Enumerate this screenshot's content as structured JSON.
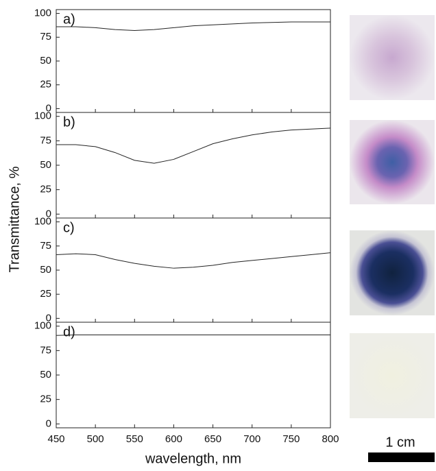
{
  "chart_data": [
    {
      "type": "line",
      "panel_label": "a)",
      "x": [
        450,
        475,
        500,
        525,
        550,
        575,
        600,
        625,
        650,
        675,
        700,
        725,
        750,
        775,
        800
      ],
      "values": [
        86,
        86,
        85,
        83,
        82,
        83,
        85,
        87,
        88,
        89,
        90,
        90.5,
        91,
        91,
        91
      ],
      "color": "#222222",
      "ylim": [
        -4,
        104
      ],
      "yticks": [
        0,
        25,
        50,
        75,
        100
      ]
    },
    {
      "type": "line",
      "panel_label": "b)",
      "x": [
        450,
        475,
        500,
        525,
        550,
        575,
        600,
        625,
        650,
        675,
        700,
        725,
        750,
        775,
        800
      ],
      "values": [
        71,
        71,
        69,
        63,
        55,
        52,
        56,
        64,
        72,
        77,
        81,
        84,
        86,
        87,
        88
      ],
      "color": "#222222",
      "ylim": [
        -4,
        104
      ],
      "yticks": [
        0,
        25,
        50,
        75,
        100
      ]
    },
    {
      "type": "line",
      "panel_label": "c)",
      "x": [
        450,
        475,
        500,
        525,
        550,
        575,
        600,
        625,
        650,
        675,
        700,
        725,
        750,
        775,
        800
      ],
      "values": [
        66,
        67,
        66,
        61,
        57,
        54,
        52,
        53,
        55,
        58,
        60,
        62,
        64,
        66,
        68
      ],
      "color": "#222222",
      "ylim": [
        -4,
        104
      ],
      "yticks": [
        0,
        25,
        50,
        75,
        100
      ]
    },
    {
      "type": "line",
      "panel_label": "d)",
      "x": [
        450,
        475,
        500,
        525,
        550,
        575,
        600,
        625,
        650,
        675,
        700,
        725,
        750,
        775,
        800
      ],
      "values": [
        90.5,
        91,
        91,
        91,
        91,
        91,
        91,
        91,
        91,
        91,
        91,
        91,
        91,
        91,
        91
      ],
      "color": "#222222",
      "ylim": [
        -4,
        104
      ],
      "yticks": [
        0,
        25,
        50,
        75,
        100
      ],
      "xlim": [
        450,
        800
      ],
      "xticks": [
        450,
        500,
        550,
        600,
        650,
        700,
        750,
        800
      ]
    }
  ],
  "axis_labels": {
    "x": "wavelength, nm",
    "y": "Transmittance, %"
  },
  "scale_bar": "1 cm"
}
